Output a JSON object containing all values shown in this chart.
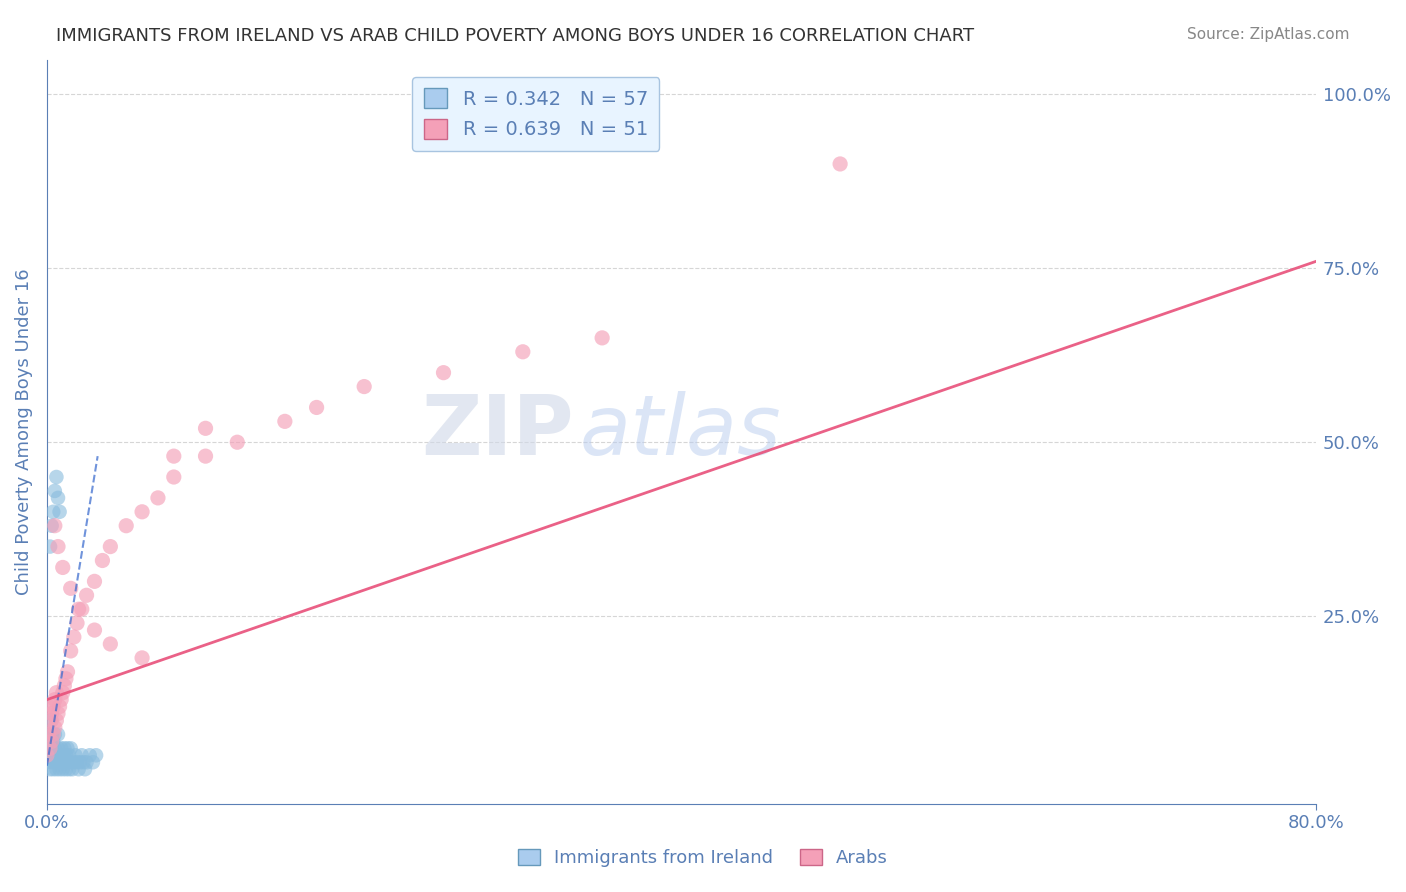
{
  "title": "IMMIGRANTS FROM IRELAND VS ARAB CHILD POVERTY AMONG BOYS UNDER 16 CORRELATION CHART",
  "source": "Source: ZipAtlas.com",
  "ylabel": "Child Poverty Among Boys Under 16",
  "xlim": [
    0.0,
    0.8
  ],
  "ylim": [
    -0.02,
    1.05
  ],
  "yticks": [
    0.0,
    0.25,
    0.5,
    0.75,
    1.0
  ],
  "xticks": [
    0.0,
    0.8
  ],
  "xtick_labels": [
    "0.0%",
    "80.0%"
  ],
  "ytick_labels": [
    "",
    "25.0%",
    "50.0%",
    "75.0%",
    "100.0%"
  ],
  "legend_entries": [
    {
      "label": "R = 0.342   N = 57",
      "color": "#6baed6"
    },
    {
      "label": "R = 0.639   N = 51",
      "color": "#fb6a9a"
    }
  ],
  "watermark_zip": "ZIP",
  "watermark_atlas": "atlas",
  "blue_scatter_x": [
    0.0,
    0.001,
    0.001,
    0.002,
    0.002,
    0.002,
    0.003,
    0.003,
    0.003,
    0.003,
    0.004,
    0.004,
    0.004,
    0.005,
    0.005,
    0.005,
    0.006,
    0.006,
    0.007,
    0.007,
    0.007,
    0.008,
    0.008,
    0.009,
    0.009,
    0.01,
    0.01,
    0.011,
    0.011,
    0.012,
    0.012,
    0.013,
    0.013,
    0.014,
    0.014,
    0.015,
    0.015,
    0.016,
    0.017,
    0.018,
    0.019,
    0.02,
    0.021,
    0.022,
    0.023,
    0.024,
    0.025,
    0.027,
    0.029,
    0.031,
    0.002,
    0.003,
    0.004,
    0.005,
    0.006,
    0.007,
    0.008
  ],
  "blue_scatter_y": [
    0.04,
    0.06,
    0.08,
    0.03,
    0.05,
    0.07,
    0.04,
    0.06,
    0.08,
    0.1,
    0.03,
    0.05,
    0.07,
    0.04,
    0.06,
    0.08,
    0.03,
    0.05,
    0.04,
    0.06,
    0.08,
    0.03,
    0.05,
    0.04,
    0.06,
    0.03,
    0.05,
    0.04,
    0.06,
    0.03,
    0.05,
    0.04,
    0.06,
    0.03,
    0.05,
    0.04,
    0.06,
    0.03,
    0.04,
    0.05,
    0.04,
    0.03,
    0.04,
    0.05,
    0.04,
    0.03,
    0.04,
    0.05,
    0.04,
    0.05,
    0.35,
    0.38,
    0.4,
    0.43,
    0.45,
    0.42,
    0.4
  ],
  "pink_scatter_x": [
    0.0,
    0.001,
    0.001,
    0.002,
    0.002,
    0.003,
    0.003,
    0.004,
    0.004,
    0.005,
    0.005,
    0.006,
    0.006,
    0.007,
    0.008,
    0.009,
    0.01,
    0.011,
    0.012,
    0.013,
    0.015,
    0.017,
    0.019,
    0.022,
    0.025,
    0.03,
    0.035,
    0.04,
    0.05,
    0.06,
    0.07,
    0.08,
    0.1,
    0.12,
    0.15,
    0.17,
    0.2,
    0.25,
    0.3,
    0.35,
    0.005,
    0.007,
    0.01,
    0.015,
    0.02,
    0.03,
    0.04,
    0.06,
    0.08,
    0.5,
    0.1
  ],
  "pink_scatter_y": [
    0.05,
    0.08,
    0.12,
    0.06,
    0.1,
    0.07,
    0.11,
    0.08,
    0.12,
    0.09,
    0.13,
    0.1,
    0.14,
    0.11,
    0.12,
    0.13,
    0.14,
    0.15,
    0.16,
    0.17,
    0.2,
    0.22,
    0.24,
    0.26,
    0.28,
    0.3,
    0.33,
    0.35,
    0.38,
    0.4,
    0.42,
    0.45,
    0.48,
    0.5,
    0.53,
    0.55,
    0.58,
    0.6,
    0.63,
    0.65,
    0.38,
    0.35,
    0.32,
    0.29,
    0.26,
    0.23,
    0.21,
    0.19,
    0.48,
    0.9,
    0.52
  ],
  "blue_trend_x": [
    0.0,
    0.032
  ],
  "blue_trend_y": [
    0.035,
    0.48
  ],
  "pink_trend_x": [
    0.0,
    0.8
  ],
  "pink_trend_y": [
    0.13,
    0.76
  ],
  "background_color": "#ffffff",
  "grid_color": "#cccccc",
  "title_color": "#333333",
  "axis_color": "#5a7fb5",
  "tick_color": "#5a7fb5",
  "legend_box_color": "#e8f4ff",
  "legend_border_color": "#a8c4e0",
  "blue_dot_color": "#88bbdd",
  "pink_dot_color": "#f4a0b8",
  "blue_line_color": "#3366cc",
  "pink_line_color": "#e8507a"
}
